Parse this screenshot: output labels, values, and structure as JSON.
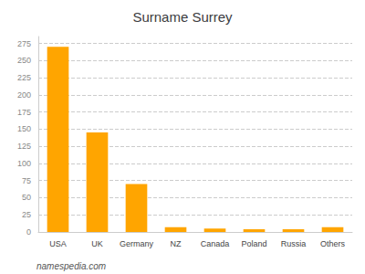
{
  "chart_data": {
    "type": "bar",
    "title": "Surname Surrey",
    "categories": [
      "USA",
      "UK",
      "Germany",
      "NZ",
      "Canada",
      "Poland",
      "Russia",
      "Others"
    ],
    "values": [
      270,
      145,
      70,
      7,
      5,
      4,
      4,
      7
    ],
    "color": "#FFA500",
    "ylim": [
      0,
      285
    ],
    "yticks": [
      0,
      25,
      50,
      75,
      100,
      125,
      150,
      175,
      200,
      225,
      250,
      275
    ],
    "grid": true,
    "annotations": [
      "namespedia.com"
    ]
  }
}
